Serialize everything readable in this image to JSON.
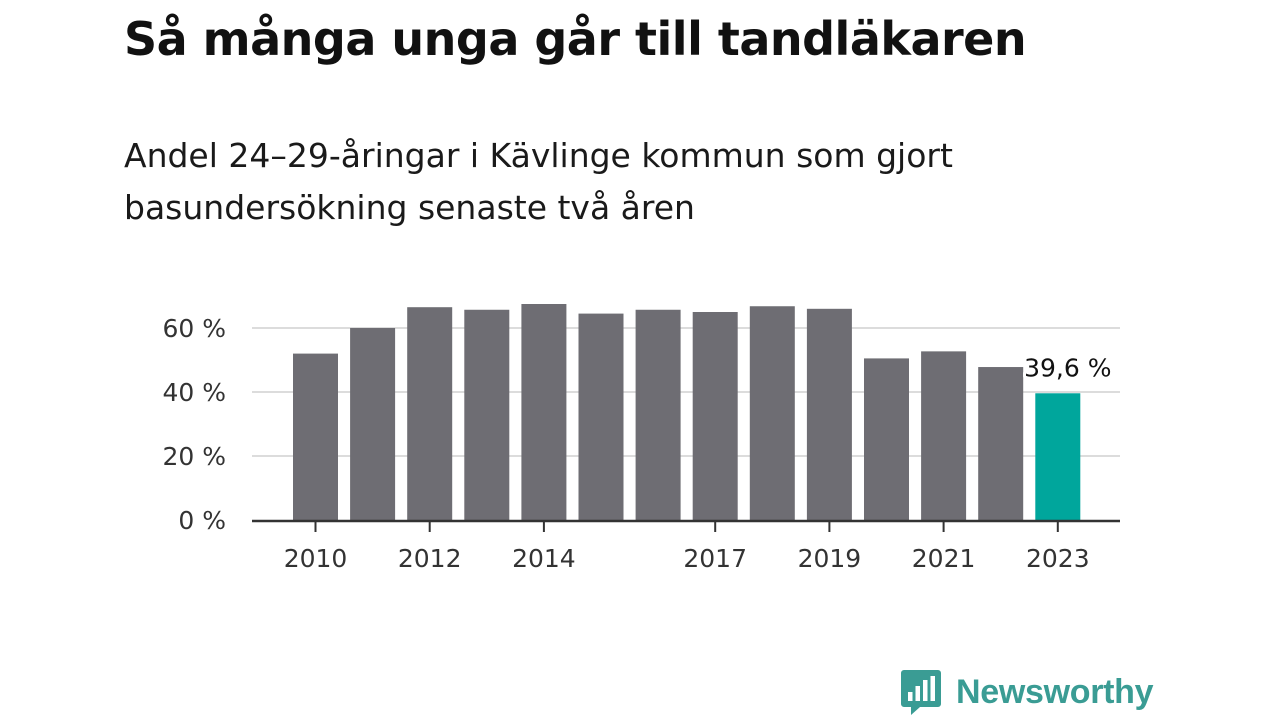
{
  "title": "Så många unga går till tandläkaren",
  "subtitle": "Andel 24–29-åringar i Kävlinge kommun som gjort basundersökning senaste två åren",
  "brand": {
    "name": "Newsworthy",
    "icon": "newsworthy-chart-bubble-icon",
    "color": "#3a9c94"
  },
  "chart_data": {
    "type": "bar",
    "categories": [
      "2010",
      "2011",
      "2012",
      "2013",
      "2014",
      "2015",
      "2016",
      "2017",
      "2018",
      "2019",
      "2020",
      "2021",
      "2022",
      "2023"
    ],
    "values": [
      52,
      60,
      66.5,
      65.7,
      67.5,
      64.5,
      65.7,
      65,
      66.8,
      66,
      50.5,
      52.7,
      47.8,
      39.6
    ],
    "x_tick_labels": [
      "2010",
      "2012",
      "2014",
      "2017",
      "2019",
      "2021",
      "2023"
    ],
    "y_ticks": [
      0,
      20,
      40,
      60
    ],
    "y_tick_labels": [
      "0 %",
      "20 %",
      "40 %",
      "60 %"
    ],
    "ylim": [
      0,
      70
    ],
    "grid": true,
    "bar_color": "#6e6d73",
    "highlight_color": "#00a69c",
    "highlight_index": 13,
    "highlight_label": "39,6 %",
    "xlabel": "",
    "ylabel": ""
  }
}
